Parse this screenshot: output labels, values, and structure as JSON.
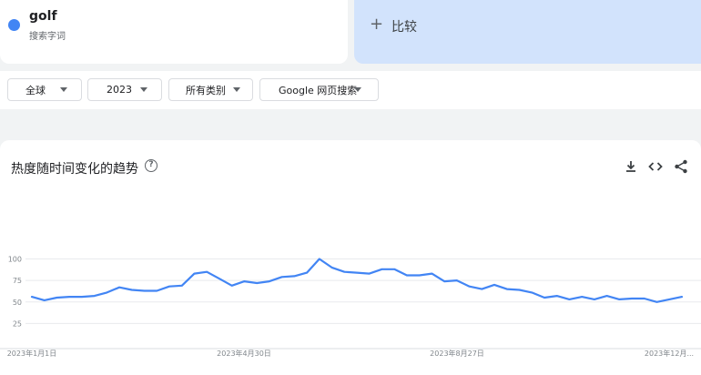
{
  "search_term": {
    "name": "golf",
    "subtitle": "搜索字词",
    "color": "#4285f4"
  },
  "compare": {
    "plus": "+",
    "label": "比较"
  },
  "filters": [
    {
      "id": "region",
      "label": "全球"
    },
    {
      "id": "time",
      "label": "2023"
    },
    {
      "id": "category",
      "label": "所有类别"
    },
    {
      "id": "source",
      "label": "Google 网页搜索"
    }
  ],
  "chart_section": {
    "title": "热度随时间变化的趋势",
    "help": "?",
    "tools": [
      "download-icon",
      "embed-icon",
      "share-icon"
    ]
  },
  "chart_data": {
    "type": "line",
    "title": "热度随时间变化的趋势",
    "x_tick_labels": [
      "2023年1月1日",
      "2023年4月30日",
      "2023年8月27日",
      "2023年12月..."
    ],
    "y_tick_labels": [
      "100",
      "75",
      "50",
      "25"
    ],
    "ylim": [
      0,
      100
    ],
    "yticks": [
      25,
      50,
      75,
      100
    ],
    "grid": true,
    "series": [
      {
        "name": "golf",
        "color": "#4285f4",
        "values": [
          56,
          52,
          55,
          56,
          56,
          57,
          61,
          67,
          64,
          63,
          63,
          68,
          69,
          83,
          85,
          77,
          69,
          74,
          72,
          74,
          79,
          80,
          84,
          100,
          90,
          85,
          84,
          83,
          88,
          88,
          81,
          81,
          83,
          74,
          75,
          68,
          65,
          70,
          65,
          64,
          61,
          55,
          57,
          53,
          56,
          53,
          57,
          53,
          54,
          54,
          50,
          53,
          56
        ]
      }
    ]
  }
}
